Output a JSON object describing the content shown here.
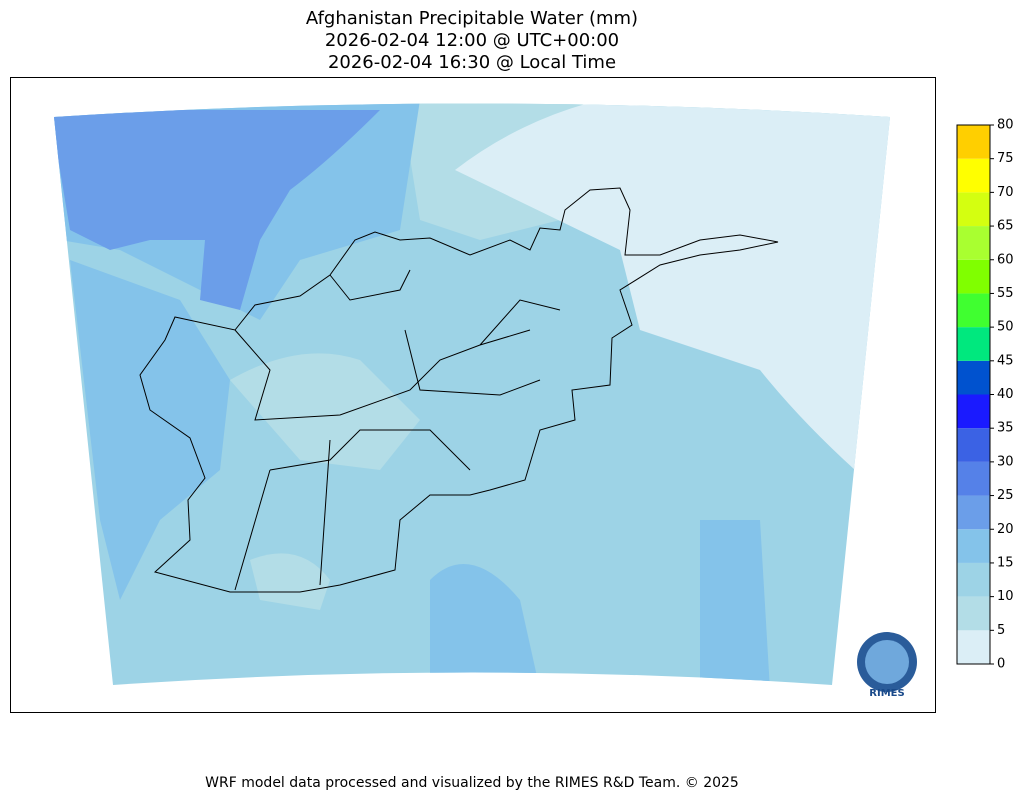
{
  "title": [
    "Afghanistan Precipitable Water (mm)",
    "2026-02-04 12:00 @ UTC+00:00",
    "2026-02-04 16:30 @ Local Time"
  ],
  "colorbar": {
    "ticks": [
      0,
      5,
      10,
      15,
      20,
      25,
      30,
      35,
      40,
      45,
      50,
      55,
      60,
      65,
      70,
      75,
      80
    ],
    "colors": [
      "#dbeef6",
      "#b3dde7",
      "#9dd3e6",
      "#84c3ea",
      "#6b9ee9",
      "#5581e8",
      "#3b62e4",
      "#1a1aff",
      "#0052cf",
      "#00e87e",
      "#40ff30",
      "#80ff00",
      "#a9ff30",
      "#d4ff10",
      "#ffff00",
      "#ffcf00"
    ]
  },
  "logo": "RIMES",
  "footer": "WRF model data processed and visualized by the RIMES R&D Team. © 2025"
}
